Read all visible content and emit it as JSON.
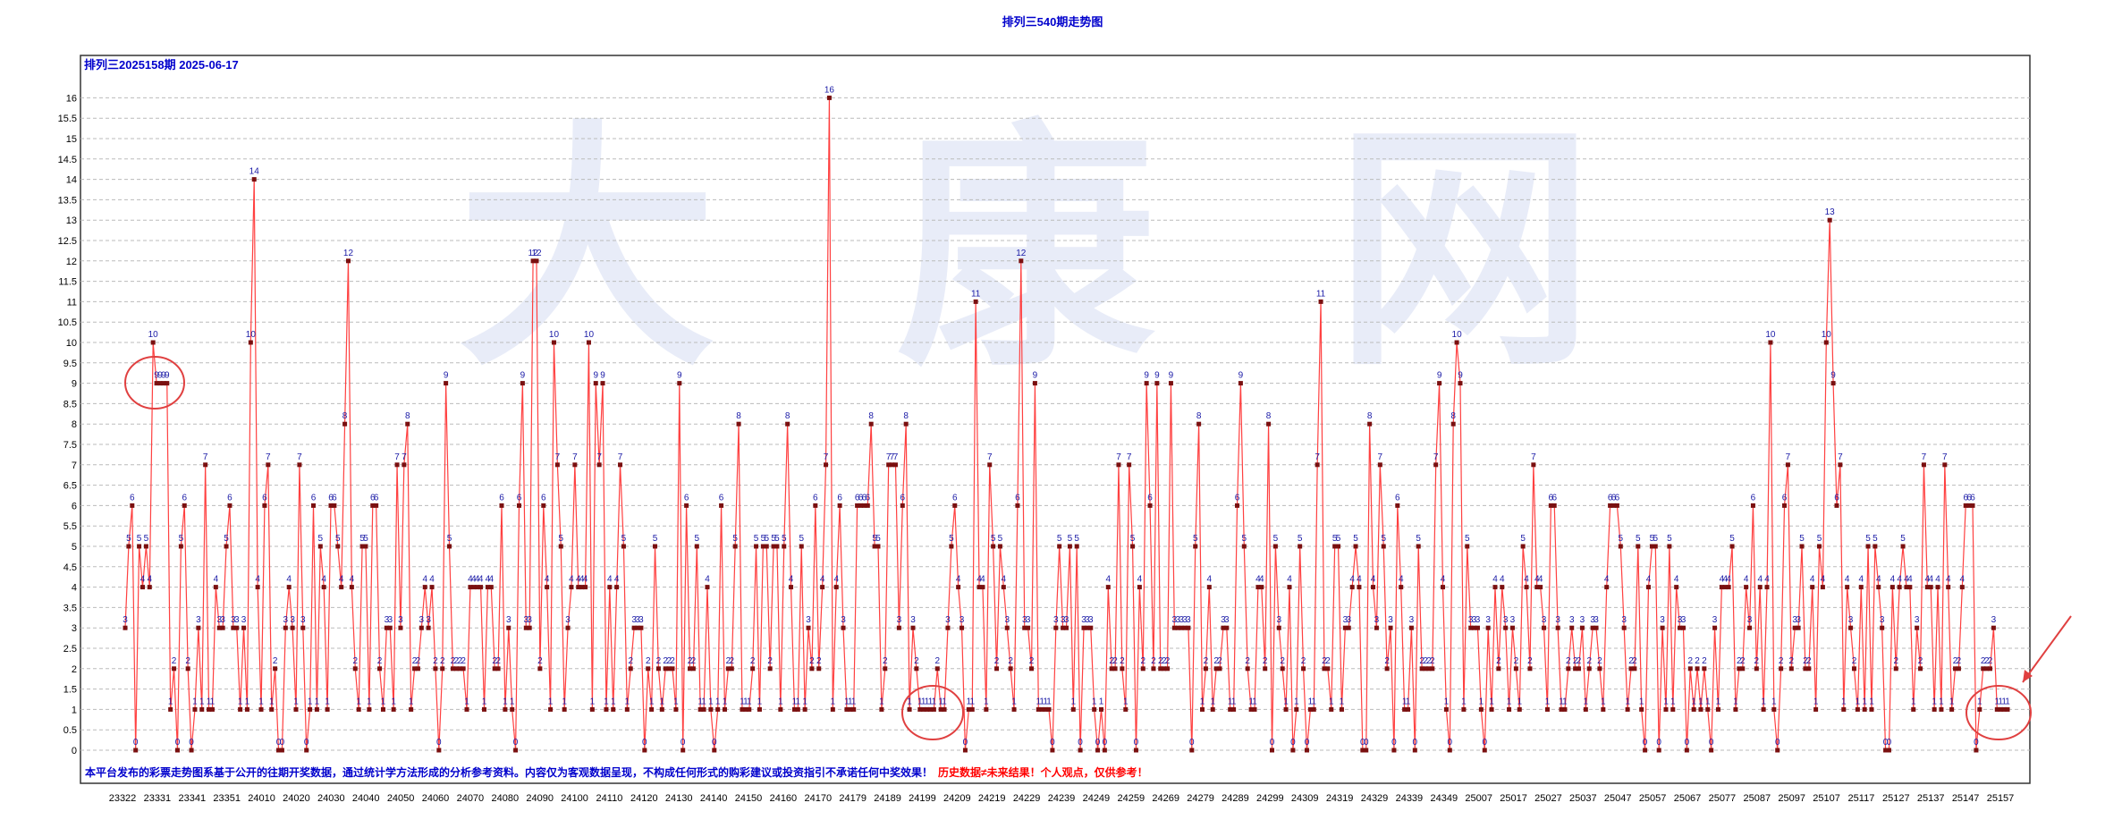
{
  "title": "排列三540期走势图",
  "subtitle": "排列三2025158期 2025-06-17",
  "footer": {
    "blue": "本平台发布的彩票走势图系基于公开的往期开奖数据，通过统计学方法形成的分析参考资料。内容仅为客观数据呈现，不构成任何形式的购彩建议或投资指引不承诺任何中奖效果！",
    "red": "历史数据≠未来结果！个人观点，仅供参考！"
  },
  "colors": {
    "line": "#ff4040",
    "marker": "#7a1010",
    "label": "#1a1aa6",
    "title": "#0000cc",
    "grid": "#bbbbbb",
    "watermark": "#e8ecf8",
    "annotation": "#e04040"
  },
  "watermark": "大 康 网",
  "chart_data": {
    "type": "line",
    "title": "排列三540期走势图",
    "xlabel": "",
    "ylabel": "",
    "ylim": [
      0,
      16.5
    ],
    "yticks": [
      0,
      0.5,
      1,
      1.5,
      2,
      2.5,
      3,
      3.5,
      4,
      4.5,
      5,
      5.5,
      6,
      6.5,
      7,
      7.5,
      8,
      8.5,
      9,
      9.5,
      10,
      10.5,
      11,
      11.5,
      12,
      12.5,
      13,
      13.5,
      14,
      14.5,
      15,
      15.5,
      16
    ],
    "grid": true,
    "xticks": [
      "23322",
      "23331",
      "23341",
      "23351",
      "24010",
      "24020",
      "24030",
      "24040",
      "24050",
      "24060",
      "24070",
      "24080",
      "24090",
      "24100",
      "24110",
      "24120",
      "24130",
      "24140",
      "24150",
      "24160",
      "24170",
      "24179",
      "24189",
      "24199",
      "24209",
      "24219",
      "24229",
      "24239",
      "24249",
      "24259",
      "24269",
      "24279",
      "24289",
      "24299",
      "24309",
      "24319",
      "24329",
      "24339",
      "24349",
      "25007",
      "25017",
      "25027",
      "25037",
      "25047",
      "25057",
      "25067",
      "25077",
      "25087",
      "25097",
      "25107",
      "25117",
      "25127",
      "25137",
      "25147",
      "25157"
    ],
    "series": [
      {
        "values": [
          3,
          5,
          6,
          0,
          5,
          4,
          5,
          4,
          10,
          9,
          9,
          9,
          9,
          1,
          2,
          0,
          5,
          6,
          2,
          0,
          1,
          3,
          1,
          7,
          1,
          1,
          4,
          3,
          3,
          5,
          6,
          3,
          3,
          1,
          3,
          1,
          10,
          14,
          4,
          1,
          6,
          7,
          1,
          2,
          0,
          0,
          3,
          4,
          3,
          1,
          7,
          3,
          0,
          1,
          6,
          1,
          5,
          4,
          1,
          6,
          6,
          5,
          4,
          8,
          12,
          4,
          2,
          1,
          5,
          5,
          1,
          6,
          6,
          2,
          1,
          3,
          3,
          1,
          7,
          3,
          7,
          8,
          1,
          2,
          2,
          3,
          4,
          3,
          4,
          2,
          0,
          2,
          9,
          5,
          2,
          2,
          2,
          2,
          1,
          4,
          4,
          4,
          4,
          1,
          4,
          4,
          2,
          2,
          6,
          1,
          3,
          1,
          0,
          6,
          9,
          3,
          3,
          12,
          12,
          2,
          6,
          4,
          1,
          10,
          7,
          5,
          1,
          3,
          4,
          7,
          4,
          4,
          4,
          10,
          1,
          9,
          7,
          9,
          1,
          4,
          1,
          4,
          7,
          5,
          1,
          2,
          3,
          3,
          3,
          0,
          2,
          1,
          5,
          2,
          1,
          2,
          2,
          2,
          1,
          9,
          0,
          6,
          2,
          2,
          5,
          1,
          1,
          4,
          1,
          0,
          1,
          6,
          1,
          2,
          2,
          5,
          8,
          1,
          1,
          1,
          2,
          5,
          1,
          5,
          5,
          2,
          5,
          5,
          1,
          5,
          8,
          4,
          1,
          1,
          5,
          1,
          3,
          2,
          6,
          2,
          4,
          7,
          16,
          1,
          4,
          6,
          3,
          1,
          1,
          1,
          6,
          6,
          6,
          6,
          8,
          5,
          5,
          1,
          2,
          7,
          7,
          7,
          3,
          6,
          8,
          1,
          3,
          2,
          1,
          1,
          1,
          1,
          1,
          2,
          1,
          1,
          3,
          5,
          6,
          4,
          3,
          0,
          1,
          1,
          11,
          4,
          4,
          1,
          7,
          5,
          2,
          5,
          4,
          3,
          2,
          1,
          6,
          12,
          3,
          3,
          2,
          9,
          1,
          1,
          1,
          1,
          0,
          3,
          5,
          3,
          3,
          5,
          1,
          5,
          0,
          3,
          3,
          3,
          1,
          0,
          1,
          0,
          4,
          2,
          2,
          7,
          2,
          1,
          7,
          5,
          0,
          4,
          2,
          9,
          6,
          2,
          9,
          2,
          2,
          2,
          9,
          3,
          3,
          3,
          3,
          3,
          0,
          5,
          8,
          1,
          2,
          4,
          1,
          2,
          2,
          3,
          3,
          1,
          1,
          6,
          9,
          5,
          2,
          1,
          1,
          4,
          4,
          2,
          8,
          0,
          5,
          3,
          2,
          1,
          4,
          0,
          1,
          5,
          2,
          0,
          1,
          1,
          7,
          11,
          2,
          2,
          1,
          5,
          5,
          1,
          3,
          3,
          4,
          5,
          4,
          0,
          0,
          8,
          4,
          3,
          7,
          5,
          2,
          3,
          0,
          6,
          4,
          1,
          1,
          3,
          0,
          5,
          2,
          2,
          2,
          2,
          7,
          9,
          4,
          1,
          0,
          8,
          10,
          9,
          1,
          5,
          3,
          3,
          3,
          1,
          0,
          3,
          1,
          4,
          2,
          4,
          3,
          1,
          3,
          2,
          1,
          5,
          4,
          2,
          7,
          4,
          4,
          3,
          1,
          6,
          6,
          3,
          1,
          1,
          2,
          3,
          2,
          2,
          3,
          1,
          2,
          3,
          3,
          2,
          1,
          4,
          6,
          6,
          6,
          5,
          3,
          1,
          2,
          2,
          5,
          1,
          0,
          4,
          5,
          5,
          0,
          3,
          1,
          5,
          1,
          4,
          3,
          3,
          0,
          2,
          1,
          2,
          1,
          2,
          1,
          0,
          3,
          1,
          4,
          4,
          4,
          5,
          1,
          2,
          2,
          4,
          3,
          6,
          2,
          4,
          1,
          4,
          10,
          1,
          0,
          2,
          6,
          7,
          2,
          3,
          3,
          5,
          2,
          2,
          4,
          1,
          5,
          4,
          10,
          13,
          9,
          6,
          7,
          1,
          4,
          3,
          2,
          1,
          4,
          1,
          5,
          1,
          5,
          4,
          3,
          0,
          0,
          4,
          2,
          4,
          5,
          4,
          4,
          1,
          3,
          2,
          7,
          4,
          4,
          1,
          4,
          1,
          7,
          4,
          1,
          2,
          2,
          4,
          6,
          6,
          6,
          0,
          1,
          2,
          2,
          2,
          3,
          1,
          1,
          1,
          1
        ]
      }
    ]
  }
}
